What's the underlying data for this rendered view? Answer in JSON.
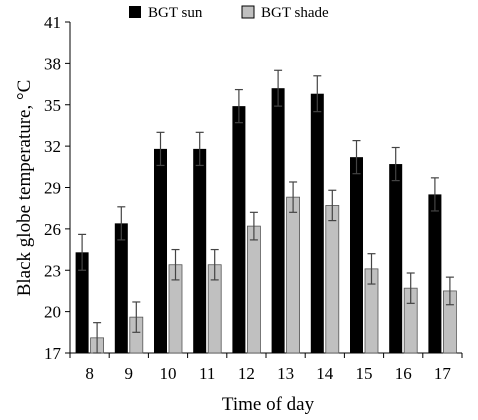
{
  "chart_data": {
    "type": "bar",
    "xlabel": "Time of day",
    "ylabel": "Black globe temperature, °C",
    "categories": [
      "8",
      "9",
      "10",
      "11",
      "12",
      "13",
      "14",
      "15",
      "16",
      "17"
    ],
    "ylim": [
      17,
      41
    ],
    "yticks": [
      "17",
      "20",
      "23",
      "26",
      "29",
      "32",
      "35",
      "38",
      "41"
    ],
    "legend_position": "top",
    "series": [
      {
        "name": "BGT sun",
        "color": "#000000",
        "values": [
          24.3,
          26.4,
          31.8,
          31.8,
          34.9,
          36.2,
          35.8,
          31.2,
          30.7,
          28.5
        ],
        "errors": [
          1.3,
          1.2,
          1.2,
          1.2,
          1.2,
          1.3,
          1.3,
          1.2,
          1.2,
          1.2
        ]
      },
      {
        "name": "BGT shade",
        "color": "#c0c0c0",
        "values": [
          18.1,
          19.6,
          23.4,
          23.4,
          26.2,
          28.3,
          27.7,
          23.1,
          21.7,
          21.5
        ],
        "errors": [
          1.1,
          1.1,
          1.1,
          1.1,
          1.0,
          1.1,
          1.1,
          1.1,
          1.1,
          1.0
        ]
      }
    ]
  }
}
